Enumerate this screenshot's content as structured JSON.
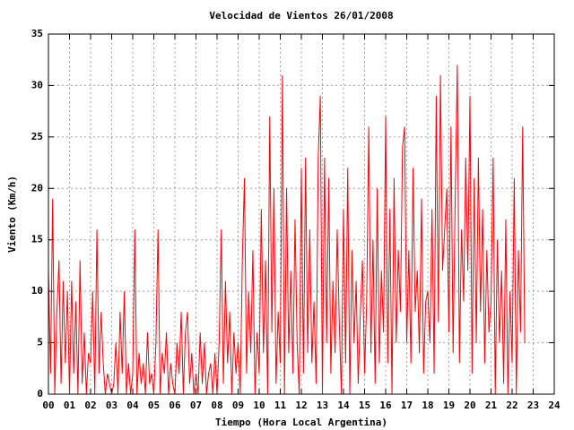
{
  "chart_data": {
    "type": "line",
    "title": "Velocidad de Vientos 26/01/2008",
    "x_label": "Tiempo (Hora Local Argentina)",
    "y_label": "Viento (Km/h)",
    "xlim": [
      0,
      24
    ],
    "ylim": [
      0,
      35
    ],
    "xticks": [
      {
        "value": 0,
        "label": "00"
      },
      {
        "value": 1,
        "label": "01"
      },
      {
        "value": 2,
        "label": "02"
      },
      {
        "value": 3,
        "label": "03"
      },
      {
        "value": 4,
        "label": "04"
      },
      {
        "value": 5,
        "label": "05"
      },
      {
        "value": 6,
        "label": "06"
      },
      {
        "value": 7,
        "label": "07"
      },
      {
        "value": 8,
        "label": "08"
      },
      {
        "value": 9,
        "label": "09"
      },
      10,
      11,
      12,
      13,
      14,
      15,
      16,
      17,
      18,
      19,
      20,
      21,
      22,
      23,
      24
    ],
    "yticks": [
      0,
      5,
      10,
      15,
      20,
      25,
      30,
      35
    ],
    "grid": true,
    "x": [
      0,
      0.1,
      0.2,
      0.3,
      0.4,
      0.5,
      0.6,
      0.7,
      0.8,
      0.9,
      1,
      1.1,
      1.2,
      1.3,
      1.4,
      1.5,
      1.6,
      1.7,
      1.8,
      1.9,
      2,
      2.1,
      2.2,
      2.3,
      2.4,
      2.5,
      2.6,
      2.7,
      2.8,
      2.9,
      3,
      3.1,
      3.2,
      3.3,
      3.4,
      3.5,
      3.6,
      3.7,
      3.8,
      3.9,
      4,
      4.1,
      4.2,
      4.3,
      4.4,
      4.5,
      4.6,
      4.7,
      4.8,
      4.9,
      5,
      5.1,
      5.2,
      5.3,
      5.4,
      5.5,
      5.6,
      5.7,
      5.8,
      5.9,
      6,
      6.1,
      6.2,
      6.3,
      6.4,
      6.5,
      6.6,
      6.7,
      6.8,
      6.9,
      7,
      7.1,
      7.2,
      7.3,
      7.4,
      7.5,
      7.6,
      7.7,
      7.8,
      7.9,
      8,
      8.1,
      8.2,
      8.3,
      8.4,
      8.5,
      8.6,
      8.7,
      8.8,
      8.9,
      9,
      9.1,
      9.2,
      9.3,
      9.4,
      9.5,
      9.6,
      9.7,
      9.8,
      9.9,
      10,
      10.1,
      10.2,
      10.3,
      10.4,
      10.5,
      10.6,
      10.7,
      10.8,
      10.9,
      11,
      11.1,
      11.2,
      11.3,
      11.4,
      11.5,
      11.6,
      11.7,
      11.8,
      11.9,
      12,
      12.1,
      12.2,
      12.3,
      12.4,
      12.5,
      12.6,
      12.7,
      12.8,
      12.9,
      13,
      13.1,
      13.2,
      13.3,
      13.4,
      13.5,
      13.6,
      13.7,
      13.8,
      13.9,
      14,
      14.1,
      14.2,
      14.3,
      14.4,
      14.5,
      14.6,
      14.7,
      14.8,
      14.9,
      15,
      15.1,
      15.2,
      15.3,
      15.4,
      15.5,
      15.6,
      15.7,
      15.8,
      15.9,
      16,
      16.1,
      16.2,
      16.3,
      16.4,
      16.5,
      16.6,
      16.7,
      16.8,
      16.9,
      17,
      17.1,
      17.2,
      17.3,
      17.4,
      17.5,
      17.6,
      17.7,
      17.8,
      17.9,
      18,
      18.1,
      18.2,
      18.3,
      18.4,
      18.5,
      18.6,
      18.7,
      18.8,
      18.9,
      19,
      19.1,
      19.2,
      19.3,
      19.4,
      19.5,
      19.6,
      19.7,
      19.8,
      19.9,
      20,
      20.1,
      20.2,
      20.3,
      20.4,
      20.5,
      20.6,
      20.7,
      20.8,
      20.9,
      21,
      21.1,
      21.2,
      21.3,
      21.4,
      21.5,
      21.6,
      21.7,
      21.8,
      21.9,
      22,
      22.1,
      22.2,
      22.3,
      22.4,
      22.5,
      22.6
    ],
    "series": [
      {
        "color": "#ff0000",
        "values": [
          12,
          2,
          19,
          0,
          8,
          13,
          1,
          11,
          3,
          10,
          0,
          11,
          2,
          9,
          0,
          13,
          1,
          6,
          0,
          4,
          3,
          10,
          0,
          16,
          2,
          8,
          3,
          0,
          2,
          1,
          0,
          1,
          5,
          0,
          8,
          2,
          10,
          0,
          3,
          0,
          2,
          16,
          0,
          4,
          1,
          3,
          0,
          6,
          1,
          2,
          0,
          5,
          16,
          0,
          4,
          2,
          6,
          0,
          3,
          1,
          0,
          5,
          2,
          8,
          0,
          6,
          8,
          1,
          4,
          0,
          2,
          0,
          6,
          1,
          5,
          0,
          2,
          3,
          0,
          4,
          0,
          5,
          16,
          1,
          11,
          3,
          8,
          0,
          6,
          2,
          5,
          0,
          13,
          21,
          2,
          10,
          4,
          14,
          0,
          6,
          2,
          18,
          4,
          13,
          0,
          27,
          6,
          20,
          1,
          8,
          3,
          31,
          0,
          20,
          4,
          12,
          2,
          17,
          5,
          0,
          22,
          2,
          23,
          4,
          16,
          3,
          9,
          1,
          23,
          29,
          0,
          23,
          5,
          21,
          2,
          11,
          4,
          16,
          7,
          0,
          18,
          3,
          22,
          0,
          14,
          5,
          11,
          1,
          8,
          13,
          2,
          9,
          26,
          4,
          15,
          1,
          20,
          3,
          12,
          6,
          27,
          3,
          18,
          0,
          21,
          5,
          14,
          8,
          24,
          26,
          5,
          14,
          3,
          22,
          8,
          12,
          4,
          19,
          2,
          9,
          10,
          5,
          18,
          2,
          29,
          7,
          31,
          12,
          16,
          20,
          6,
          26,
          4,
          19,
          32,
          3,
          16,
          9,
          23,
          12,
          29,
          2,
          21,
          5,
          23,
          8,
          18,
          3,
          14,
          6,
          9,
          23,
          0,
          15,
          5,
          12,
          1,
          17,
          0,
          10,
          3,
          21,
          0,
          14,
          6,
          26,
          5
        ]
      }
    ]
  }
}
